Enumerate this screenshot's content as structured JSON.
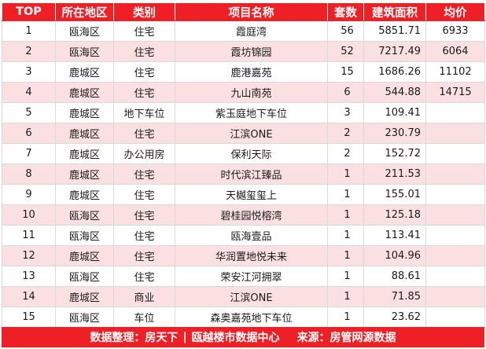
{
  "table": {
    "headers": [
      "TOP",
      "所在地区",
      "类别",
      "项目名称",
      "套数",
      "建筑面积",
      "均价"
    ],
    "rows": [
      [
        "1",
        "瓯海区",
        "住宅",
        "霞庭湾",
        "56",
        "5851.71",
        "6933"
      ],
      [
        "2",
        "瓯海区",
        "住宅",
        "霞坊锦园",
        "52",
        "7217.49",
        "6064"
      ],
      [
        "3",
        "鹿城区",
        "住宅",
        "鹿港嘉苑",
        "15",
        "1686.26",
        "11102"
      ],
      [
        "4",
        "鹿城区",
        "住宅",
        "九山南苑",
        "6",
        "544.88",
        "14715"
      ],
      [
        "5",
        "鹿城区",
        "地下车位",
        "紫玉庭地下车位",
        "3",
        "109.41",
        ""
      ],
      [
        "6",
        "鹿城区",
        "住宅",
        "江滨ONE",
        "2",
        "230.79",
        ""
      ],
      [
        "7",
        "鹿城区",
        "办公用房",
        "保利天际",
        "2",
        "152.72",
        ""
      ],
      [
        "8",
        "鹿城区",
        "住宅",
        "时代滨江臻品",
        "1",
        "211.53",
        ""
      ],
      [
        "9",
        "鹿城区",
        "住宅",
        "天樾玺玺上",
        "1",
        "155.01",
        ""
      ],
      [
        "10",
        "瓯海区",
        "住宅",
        "碧桂园悦榕湾",
        "1",
        "125.18",
        ""
      ],
      [
        "11",
        "瓯海区",
        "住宅",
        "瓯海壹品",
        "1",
        "113.41",
        ""
      ],
      [
        "12",
        "鹿城区",
        "住宅",
        "华润置地悦未来",
        "1",
        "104.96",
        ""
      ],
      [
        "13",
        "瓯海区",
        "住宅",
        "荣安江河拥翠",
        "1",
        "88.61",
        ""
      ],
      [
        "14",
        "鹿城区",
        "商业",
        "江滨ONE",
        "1",
        "71.85",
        ""
      ],
      [
        "15",
        "瓯海区",
        "车位",
        "森奥嘉苑地下车位",
        "1",
        "23.62",
        ""
      ]
    ]
  },
  "footer": {
    "prefix": "数据整理：房天下",
    "separator": "|",
    "middle": "瓯越楼市数据中心",
    "suffix": "来源：房管网源数据"
  },
  "colors": {
    "header_bg": "#ee2026",
    "alt_row_bg": "#fbe0e2"
  }
}
